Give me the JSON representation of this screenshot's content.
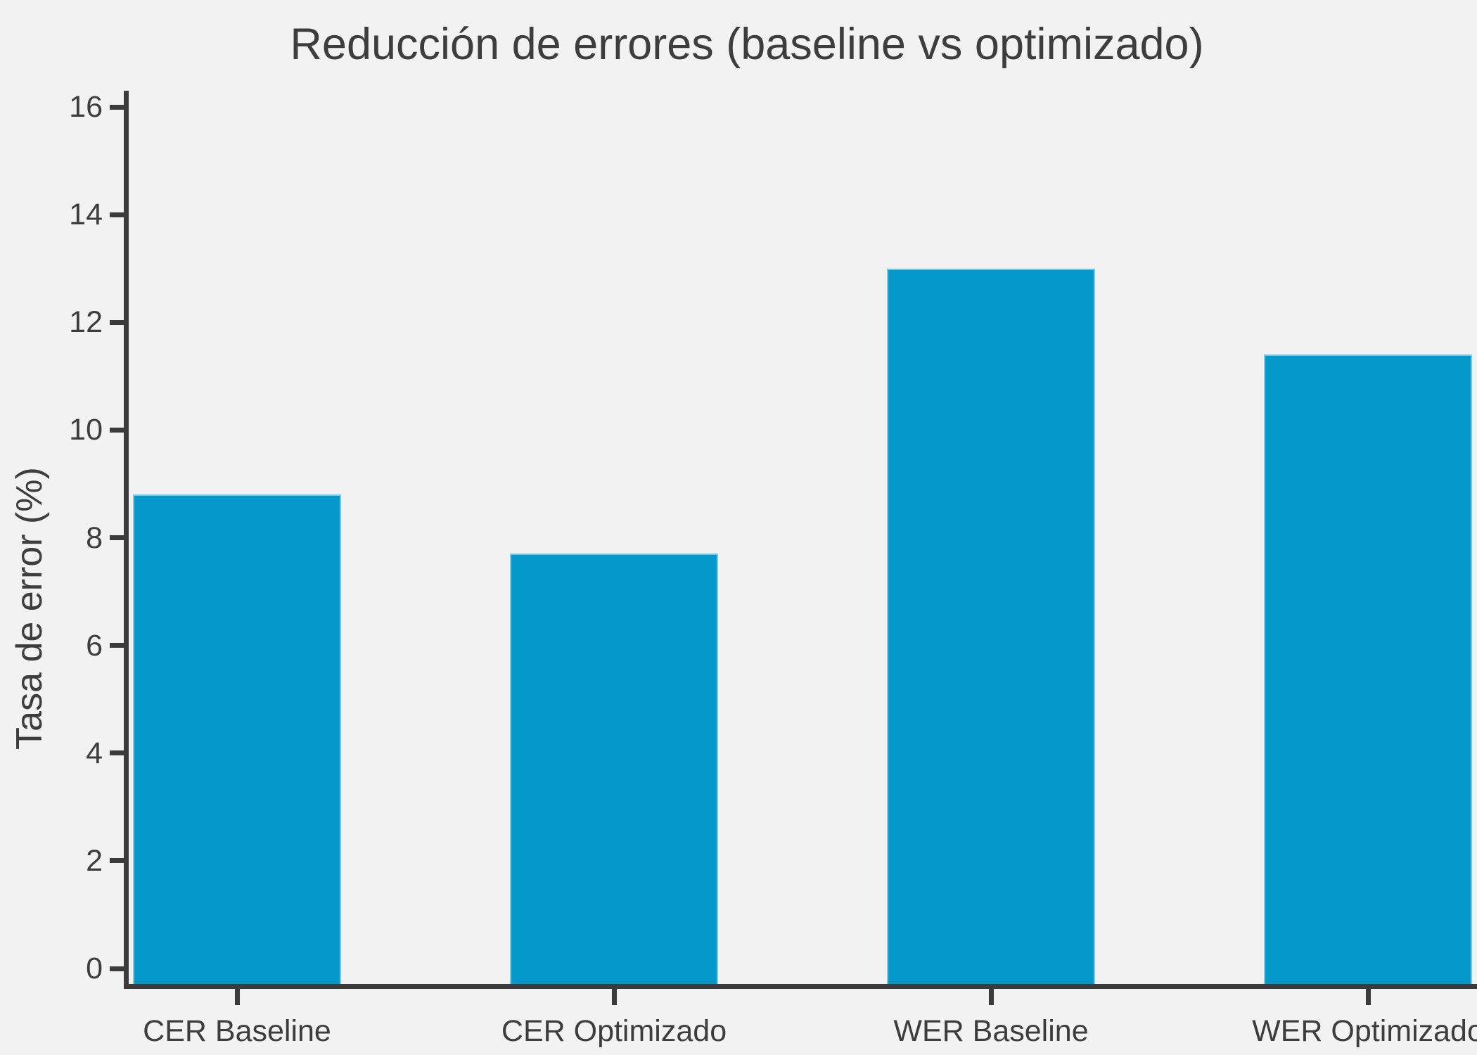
{
  "title": "Reducción de errores (baseline vs optimizado)",
  "chart_data": {
    "type": "bar",
    "title": "Reducción de errores (baseline vs optimizado)",
    "categories": [
      "CER Baseline",
      "CER Optimizado",
      "WER Baseline",
      "WER Optimizado"
    ],
    "values": [
      8.8,
      7.7,
      13.0,
      11.4
    ],
    "xlabel": "",
    "ylabel": "Tasa de error (%)",
    "ylim": [
      0,
      16
    ],
    "yticks": [
      0,
      2,
      4,
      6,
      8,
      10,
      12,
      14,
      16
    ],
    "grid": false,
    "legend": false,
    "colors": {
      "bar": "#0598cb",
      "axis": "#3b3b3b",
      "text": "#3d3d3d",
      "background": "#f2f2f2"
    }
  }
}
